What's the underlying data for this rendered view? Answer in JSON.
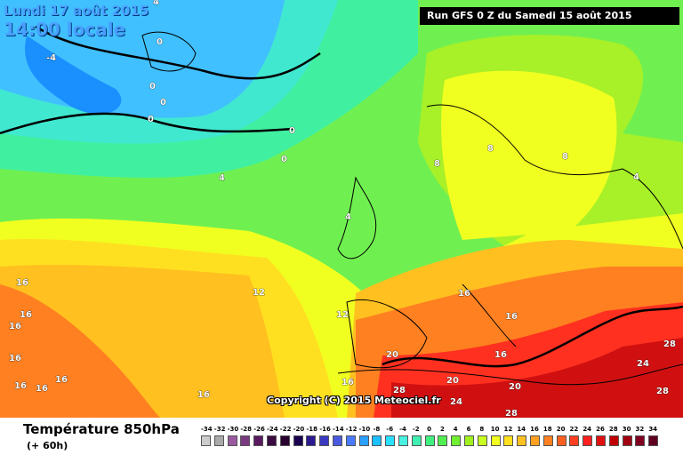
{
  "header": {
    "date": "Lundi 17 août 2015",
    "time": "14:00 locale",
    "run": "Run GFS 0 Z du Samedi 15 août 2015"
  },
  "copyright": "Copyright (C) 2015 Meteociel.fr",
  "footer": {
    "title": "Température 850hPa",
    "subtitle": "(+ 60h)"
  },
  "legend": {
    "values": [
      "-34",
      "-32",
      "-30",
      "-28",
      "-26",
      "-24",
      "-22",
      "-20",
      "-18",
      "-16",
      "-14",
      "-12",
      "-10",
      "-8",
      "-6",
      "-4",
      "-2",
      "0",
      "2",
      "4",
      "6",
      "8",
      "10",
      "12",
      "14",
      "16",
      "18",
      "20",
      "22",
      "24",
      "26",
      "28",
      "30",
      "32",
      "34"
    ],
    "colors": [
      "#cccccc",
      "#aaaaaa",
      "#9a5aa0",
      "#7a3a80",
      "#5a1a60",
      "#3a0a40",
      "#2a0030",
      "#1a0050",
      "#2a1a90",
      "#3a3ac0",
      "#4a5ae0",
      "#4a7aff",
      "#2aa0ff",
      "#1ac0ff",
      "#2ae0ff",
      "#4af0e0",
      "#40f0b0",
      "#40f080",
      "#50f050",
      "#70f030",
      "#a0f020",
      "#c8ff20",
      "#f0ff20",
      "#ffe020",
      "#ffc020",
      "#ffa020",
      "#ff8020",
      "#ff6020",
      "#ff4020",
      "#ff2020",
      "#e01010",
      "#c00000",
      "#a00010",
      "#800020",
      "#600020"
    ]
  },
  "map_colors": {
    "sea_blue": "#40c0ff",
    "deep_blue": "#1a90ff",
    "cyan": "#40e8d0",
    "aqua_green": "#40f0a0",
    "green": "#70f050",
    "light_green": "#a8f028",
    "yellow": "#f0ff20",
    "gold": "#ffe020",
    "orange": "#ffc020",
    "dark_orange": "#ff8020",
    "red": "#ff3020",
    "dark_red": "#d01010"
  },
  "contour_labels": [
    {
      "text": "-4"
    },
    {
      "text": "0"
    },
    {
      "text": "0"
    },
    {
      "text": "0"
    },
    {
      "text": "0"
    },
    {
      "text": "0"
    },
    {
      "text": "0"
    },
    {
      "text": "4"
    },
    {
      "text": "4"
    },
    {
      "text": "4"
    },
    {
      "text": "4"
    },
    {
      "text": "8"
    },
    {
      "text": "8"
    },
    {
      "text": "8"
    },
    {
      "text": "12"
    },
    {
      "text": "12"
    },
    {
      "text": "16"
    },
    {
      "text": "16"
    },
    {
      "text": "16"
    },
    {
      "text": "16"
    },
    {
      "text": "16"
    },
    {
      "text": "16"
    },
    {
      "text": "16"
    },
    {
      "text": "16"
    },
    {
      "text": "16"
    },
    {
      "text": "16"
    },
    {
      "text": "16"
    },
    {
      "text": "16"
    },
    {
      "text": "20"
    },
    {
      "text": "20"
    },
    {
      "text": "20"
    },
    {
      "text": "24"
    },
    {
      "text": "24"
    },
    {
      "text": "28"
    },
    {
      "text": "28"
    },
    {
      "text": "28"
    },
    {
      "text": "28"
    }
  ]
}
